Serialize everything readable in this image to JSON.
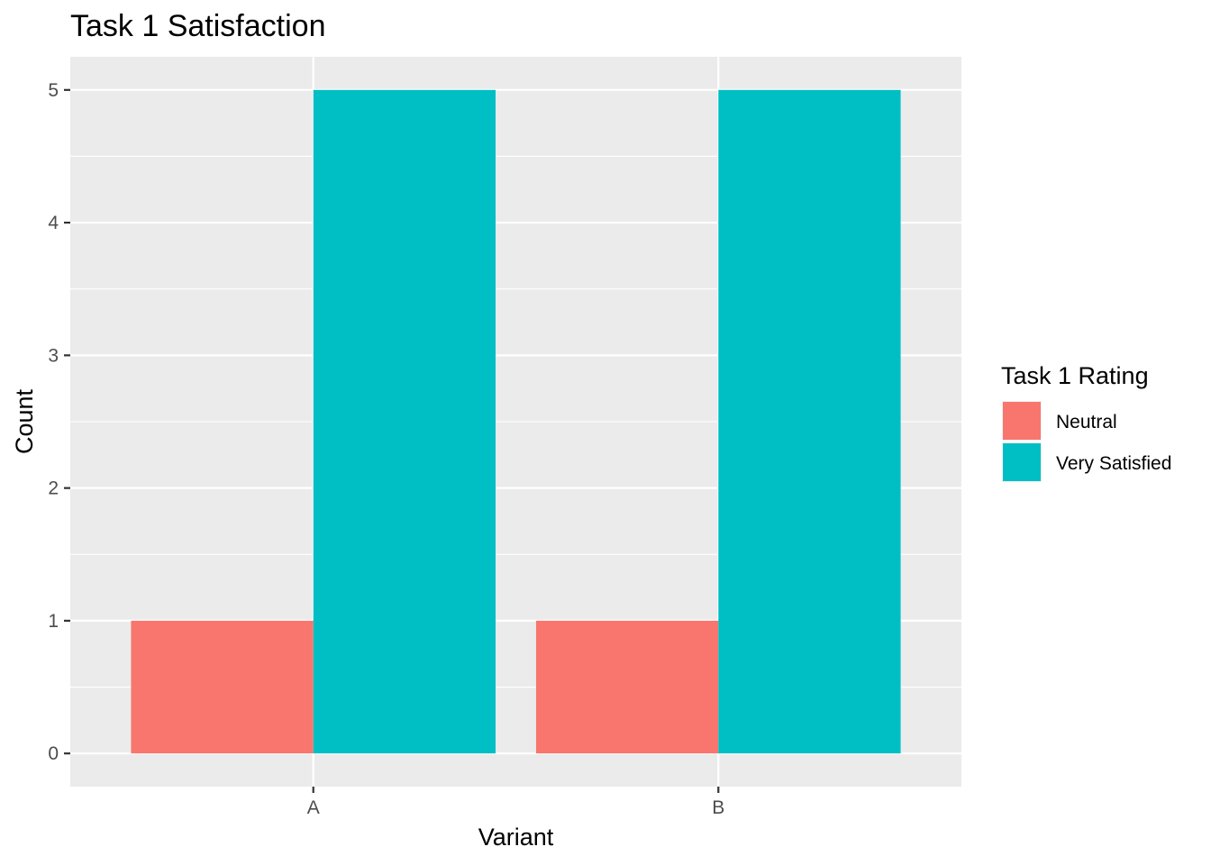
{
  "chart_data": {
    "type": "bar",
    "title": "Task 1 Satisfaction",
    "xlabel": "Variant",
    "ylabel": "Count",
    "categories": [
      "A",
      "B"
    ],
    "series": [
      {
        "name": "Neutral",
        "values": [
          1,
          1
        ],
        "color": "#F8766D"
      },
      {
        "name": "Very Satisfied",
        "values": [
          5,
          5
        ],
        "color": "#00BFC4"
      }
    ],
    "ylim": [
      -0.25,
      5.25
    ],
    "yticks": [
      0,
      1,
      2,
      3,
      4,
      5
    ],
    "legend": {
      "title": "Task 1 Rating",
      "position": "right"
    },
    "grid": true,
    "panel_background": "#EBEBEB",
    "grid_color": "#FFFFFF"
  }
}
